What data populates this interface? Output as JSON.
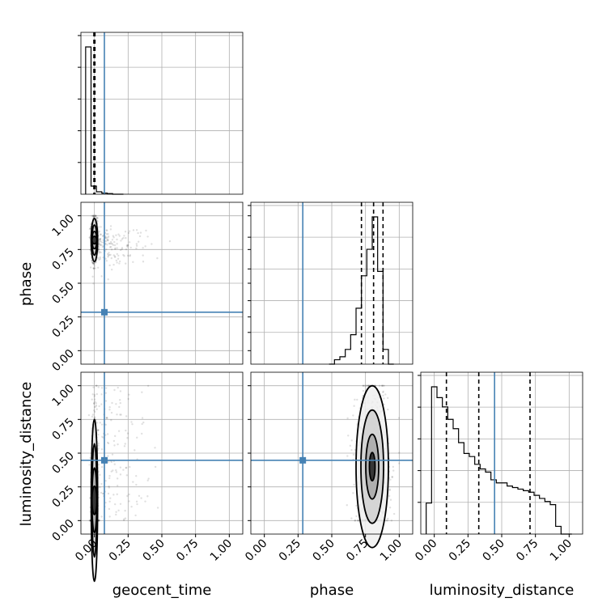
{
  "chart_data": {
    "type": "corner",
    "parameters": [
      "geocent_time",
      "phase",
      "luminosity_distance"
    ],
    "x_tick_labels": [
      "0.00",
      "0.25",
      "0.50",
      "0.75",
      "1.00"
    ],
    "y_tick_labels": [
      "0.00",
      "0.25",
      "0.50",
      "0.75",
      "1.00"
    ],
    "axis_range": [
      -0.1,
      1.1
    ],
    "grid": true,
    "truths": {
      "geocent_time": 0.074,
      "phase": 0.285,
      "luminosity_distance": 0.447
    },
    "truth_color": "#4682b4",
    "diagonal": {
      "geocent_time": {
        "hist_x": [
          -0.045,
          -0.005,
          0.035,
          0.075,
          0.115,
          0.155,
          0.195
        ],
        "hist_values": [
          0.91,
          0.05,
          0.015,
          0.007,
          0.004,
          0.0,
          0.0
        ],
        "quantiles": [
          -0.004,
          0.0,
          0.004
        ]
      },
      "phase": {
        "hist_x": [
          0.5,
          0.54,
          0.58,
          0.62,
          0.66,
          0.7,
          0.74,
          0.78,
          0.82,
          0.86,
          0.9,
          0.94
        ],
        "hist_values": [
          0.0,
          0.03,
          0.05,
          0.1,
          0.2,
          0.38,
          0.6,
          0.78,
          1.0,
          0.63,
          0.1,
          0.0
        ],
        "quantiles": [
          0.72,
          0.81,
          0.88
        ]
      },
      "luminosity_distance": {
        "hist_x": [
          -0.04,
          0.0,
          0.04,
          0.08,
          0.12,
          0.16,
          0.2,
          0.24,
          0.28,
          0.32,
          0.36,
          0.4,
          0.44,
          0.48,
          0.52,
          0.56,
          0.6,
          0.64,
          0.68,
          0.72,
          0.76,
          0.8,
          0.84,
          0.88,
          0.92,
          0.96,
          1.0
        ],
        "hist_values": [
          0.2,
          0.95,
          0.88,
          0.82,
          0.74,
          0.68,
          0.59,
          0.52,
          0.5,
          0.45,
          0.42,
          0.4,
          0.35,
          0.33,
          0.33,
          0.31,
          0.3,
          0.29,
          0.28,
          0.27,
          0.25,
          0.23,
          0.21,
          0.19,
          0.05,
          0.0,
          0.0
        ],
        "quantiles": [
          0.09,
          0.33,
          0.71
        ]
      }
    },
    "pairs": [
      {
        "x": "geocent_time",
        "y": "phase",
        "center": [
          0.0,
          0.82
        ],
        "spread": [
          0.012,
          0.08
        ],
        "outliers": "right-tail"
      },
      {
        "x": "geocent_time",
        "y": "luminosity_distance",
        "center": [
          0.0,
          0.15
        ],
        "spread": [
          0.012,
          0.3
        ],
        "outliers": "right-tail"
      },
      {
        "x": "phase",
        "y": "luminosity_distance",
        "center": [
          0.8,
          0.4
        ],
        "spread": [
          0.06,
          0.3
        ],
        "outliers": "none"
      }
    ]
  }
}
